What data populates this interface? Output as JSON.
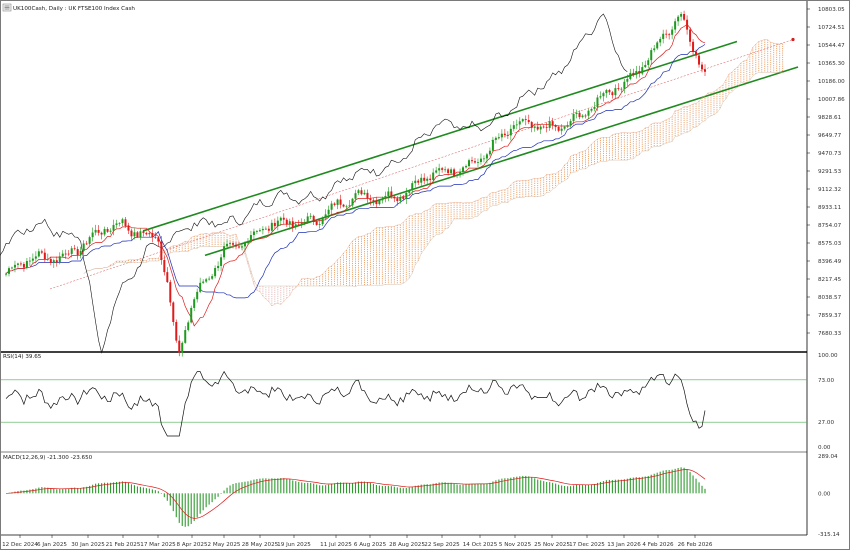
{
  "symbol_label": "UK100Cash, Daily : UK FTSE100 Index Cash",
  "rsi_label": "RSI(14) 39.65",
  "macd_label": "MACD(12,26,9) -21.300 -23.650",
  "colors": {
    "up_candle": "#1e9a1e",
    "down_candle": "#e01a1a",
    "channel": "#1f8a1f",
    "kijun": "#1c2fb8",
    "tenkan": "#e01a1a",
    "cloud_up": "#e9a06a",
    "cloud_down": "#e3b6b6",
    "chikou": "#111111",
    "macd_hist": "#2e9a2e",
    "macd_signal": "#e01a1a",
    "rsi_line": "#111111",
    "rsi_levels": "#4caf50",
    "forecast_line": "#d02020"
  },
  "chart_data": [
    {
      "type": "candlestick",
      "title": "UK100Cash, Daily : UK FTSE100 Index Cash",
      "y_axis_ticks": [
        "10803.05",
        "10724.51",
        "10544.47",
        "10365.30",
        "10186.00",
        "10007.86",
        "9828.61",
        "9649.77",
        "9470.73",
        "9291.53",
        "9112.32",
        "8933.11",
        "8754.07",
        "8575.03",
        "8396.49",
        "8217.45",
        "8038.57",
        "7859.37",
        "7680.33"
      ],
      "ylim": [
        7600,
        10860
      ],
      "x_axis_ticks": [
        "12 Dec 2024",
        "6 Jan 2025",
        "30 Jan 2025",
        "21 Feb 2025",
        "17 Mar 2025",
        "8 Apr 2025",
        "2 May 2025",
        "28 May 2025",
        "19 Jun 2025",
        "11 Jul 2025",
        "6 Aug 2025",
        "28 Aug 2025",
        "22 Sep 2025",
        "14 Oct 2025",
        "5 Nov 2025",
        "25 Nov 2025",
        "17 Dec 2025",
        "13 Jan 2026",
        "4 Feb 2026",
        "26 Feb 2026"
      ],
      "grid": false,
      "indicators": [
        "Ichimoku cloud",
        "Tenkan-sen",
        "Kijun-sen",
        "Chikou span",
        "Ascending price channel"
      ],
      "key_points": [
        {
          "date": "12 Dec 2024",
          "close": 8300
        },
        {
          "date": "21 Feb 2025",
          "close": 8760
        },
        {
          "date": "17 Mar 2025",
          "close": 8700
        },
        {
          "date": "8 Apr 2025",
          "close": 7680
        },
        {
          "date": "2 May 2025",
          "close": 8570
        },
        {
          "date": "11 Jul 2025",
          "close": 8950
        },
        {
          "date": "22 Sep 2025",
          "close": 9250
        },
        {
          "date": "5 Nov 2025",
          "close": 9700
        },
        {
          "date": "17 Dec 2025",
          "close": 9850
        },
        {
          "date": "13 Jan 2026",
          "close": 10200
        },
        {
          "date": "26 Feb 2026",
          "close": 10790
        },
        {
          "date": "last",
          "close": 10260
        }
      ]
    },
    {
      "type": "line",
      "title": "RSI(14) 39.65",
      "y_axis_ticks": [
        "100.00",
        "73.00",
        "27.00",
        "0.00"
      ],
      "ylim": [
        0,
        100
      ],
      "levels": [
        73,
        27
      ],
      "last_value": 39.65
    },
    {
      "type": "bar",
      "title": "MACD(12,26,9) -21.300 -23.650",
      "y_axis_ticks": [
        "289.04",
        "0.00",
        "-315.14"
      ],
      "ylim": [
        -315.14,
        289.04
      ],
      "series": [
        {
          "name": "MACD"
        },
        {
          "name": "Signal"
        }
      ],
      "last_macd": -21.3,
      "last_signal": -23.65
    }
  ]
}
